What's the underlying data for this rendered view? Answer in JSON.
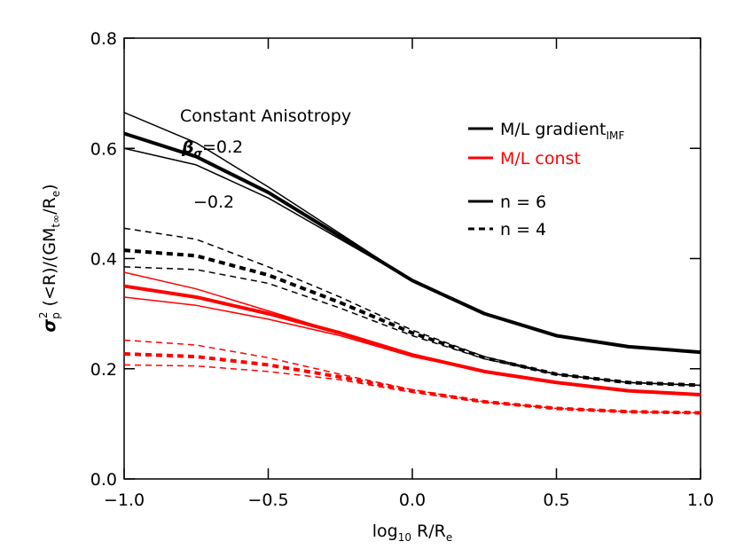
{
  "chart_data": {
    "type": "line",
    "xlabel": [
      "log",
      "10",
      " R/R",
      "e"
    ],
    "ylabel": [
      "σ",
      "p",
      "2",
      " (<R)/(GM",
      "t∞",
      "/R",
      "e",
      ")"
    ],
    "annotations": {
      "title": "Constant Anisotropy",
      "beta": [
        "β",
        "σ",
        "=0.2"
      ],
      "minus": "−0.2"
    },
    "legend": {
      "colors": [
        {
          "text": "M/L gradient",
          "sub": "IMF",
          "color": "#000000"
        },
        {
          "text": "M/L const",
          "color": "#ff0000"
        }
      ],
      "styles": [
        {
          "text": "n = 6",
          "dash": false
        },
        {
          "text": "n = 4",
          "dash": true
        }
      ]
    },
    "x": [
      -1,
      -0.75,
      -0.5,
      -0.25,
      0,
      0.25,
      0.5,
      0.75,
      1
    ],
    "series": [
      {
        "color": "#000000",
        "width": 4,
        "dash": false,
        "values": [
          0.627,
          0.585,
          0.52,
          0.44,
          0.36,
          0.3,
          0.26,
          0.24,
          0.23
        ]
      },
      {
        "color": "#000000",
        "width": 1.5,
        "dash": false,
        "values": [
          0.665,
          0.61,
          0.53,
          0.445,
          0.36,
          0.3,
          0.26,
          0.24,
          0.23
        ]
      },
      {
        "color": "#000000",
        "width": 1.5,
        "dash": false,
        "values": [
          0.6,
          0.57,
          0.51,
          0.435,
          0.36,
          0.3,
          0.26,
          0.24,
          0.23
        ]
      },
      {
        "color": "#000000",
        "width": 4,
        "dash": true,
        "values": [
          0.415,
          0.405,
          0.37,
          0.32,
          0.265,
          0.22,
          0.19,
          0.175,
          0.17
        ]
      },
      {
        "color": "#000000",
        "width": 1.5,
        "dash": true,
        "values": [
          0.455,
          0.435,
          0.385,
          0.33,
          0.27,
          0.222,
          0.19,
          0.175,
          0.17
        ]
      },
      {
        "color": "#000000",
        "width": 1.5,
        "dash": true,
        "values": [
          0.385,
          0.38,
          0.355,
          0.31,
          0.26,
          0.218,
          0.19,
          0.175,
          0.17
        ]
      },
      {
        "color": "#ff0000",
        "width": 4,
        "dash": false,
        "values": [
          0.35,
          0.33,
          0.3,
          0.265,
          0.225,
          0.195,
          0.175,
          0.16,
          0.153
        ]
      },
      {
        "color": "#ff0000",
        "width": 1.5,
        "dash": false,
        "values": [
          0.375,
          0.345,
          0.305,
          0.265,
          0.225,
          0.195,
          0.175,
          0.16,
          0.153
        ]
      },
      {
        "color": "#ff0000",
        "width": 1.5,
        "dash": false,
        "values": [
          0.33,
          0.315,
          0.29,
          0.26,
          0.222,
          0.195,
          0.175,
          0.16,
          0.153
        ]
      },
      {
        "color": "#ff0000",
        "width": 4,
        "dash": true,
        "values": [
          0.227,
          0.222,
          0.207,
          0.185,
          0.16,
          0.14,
          0.128,
          0.122,
          0.12
        ]
      },
      {
        "color": "#ff0000",
        "width": 1.5,
        "dash": true,
        "values": [
          0.252,
          0.243,
          0.22,
          0.19,
          0.162,
          0.14,
          0.128,
          0.122,
          0.12
        ]
      },
      {
        "color": "#ff0000",
        "width": 1.5,
        "dash": true,
        "values": [
          0.207,
          0.205,
          0.195,
          0.18,
          0.157,
          0.139,
          0.128,
          0.122,
          0.12
        ]
      }
    ],
    "xlim": [
      -1,
      1
    ],
    "ylim": [
      0,
      0.8
    ],
    "xticks": [
      {
        "value": -1,
        "label": "−1.0"
      },
      {
        "value": -0.5,
        "label": "−0.5"
      },
      {
        "value": 0,
        "label": "0.0"
      },
      {
        "value": 0.5,
        "label": "0.5"
      },
      {
        "value": 1,
        "label": "1.0"
      }
    ],
    "yticks": [
      {
        "value": 0,
        "label": "0.0"
      },
      {
        "value": 0.2,
        "label": "0.2"
      },
      0.4,
      0.6,
      0.8
    ]
  }
}
